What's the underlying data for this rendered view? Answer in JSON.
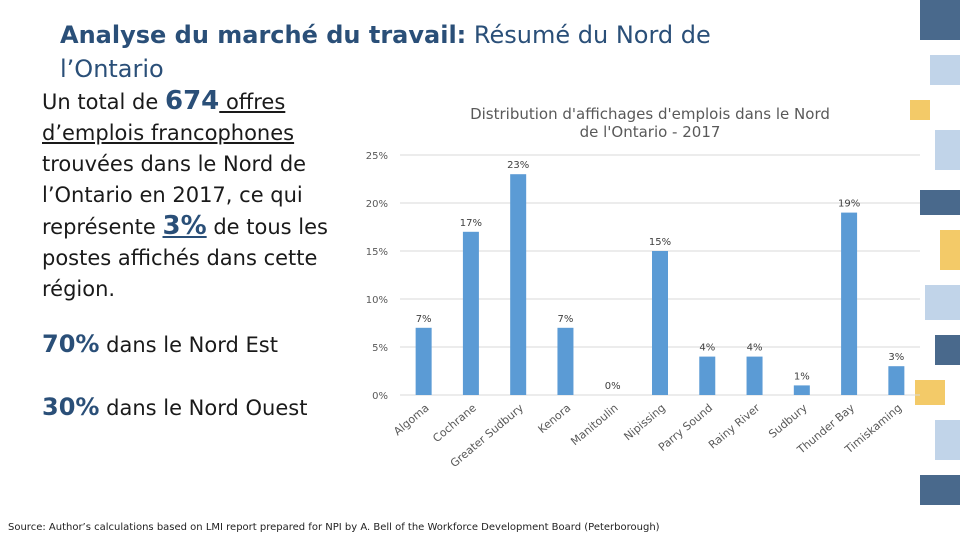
{
  "slide": {
    "title_bold": "Analyse du marché du travail:",
    "title_rest": "Résumé du Nord de l’Ontario",
    "summary": {
      "part1": "Un total de ",
      "count": "674",
      "part2": " offres d’emplois francophones",
      "part3": " trouvées dans le Nord de l’Ontario en 2017, ce qui représente ",
      "percent": "3%",
      "part4": " de tous les postes affichés dans cette région."
    },
    "stat_east": {
      "pct": "70%",
      "label": " dans le Nord Est"
    },
    "stat_west": {
      "pct": "30%",
      "label": " dans le Nord Ouest"
    },
    "source": "Source: Author’s calculations based on LMI report prepared for NPI by A. Bell of the Workforce Development Board (Peterborough)"
  },
  "colors": {
    "bar": "#5b9bd5",
    "title": "#2a4f78",
    "deco_blue": "#2a4f78",
    "deco_light": "#b7cde6",
    "deco_gold": "#f2c14e"
  },
  "chart_data": {
    "type": "bar",
    "title": "Distribution d'affichages d'emplois dans le Nord de l'Ontario - 2017",
    "categories": [
      "Algoma",
      "Cochrane",
      "Greater Sudbury",
      "Kenora",
      "Manitoulin",
      "Nipissing",
      "Parry Sound",
      "Rainy River",
      "Sudbury",
      "Thunder Bay",
      "Timiskaming"
    ],
    "values": [
      7,
      17,
      23,
      7,
      0,
      15,
      4,
      4,
      1,
      19,
      3
    ],
    "value_labels": [
      "7%",
      "17%",
      "23%",
      "7%",
      "0%",
      "15%",
      "4%",
      "4%",
      "1%",
      "19%",
      "3%"
    ],
    "yticks": [
      "0%",
      "5%",
      "10%",
      "15%",
      "20%",
      "25%"
    ],
    "ylim": [
      0,
      25
    ],
    "xlabel": "",
    "ylabel": "",
    "grid": true,
    "legend": "none"
  }
}
